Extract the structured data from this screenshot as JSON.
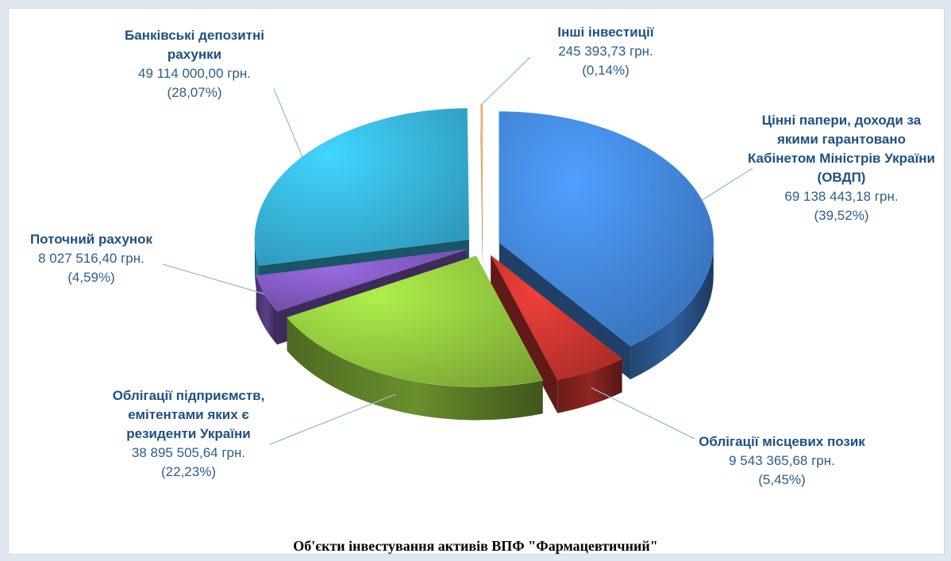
{
  "chart_data": {
    "type": "pie",
    "title": "Об'єкти інвестування активів ВПФ \"Фармацевтичний\"",
    "slices": [
      {
        "label": "Цінні папери, доходи за якими гарантовано Кабінетом Міністрів України (ОВДП)",
        "value_text": "69 138 443,18 грн.",
        "percent_text": "(39,52%)",
        "value": 69138443.18,
        "percent": 39.52,
        "color": "#3f7fd0"
      },
      {
        "label": "Облігації місцевих позик",
        "value_text": "9 543 365,68 грн.",
        "percent_text": "(5,45%)",
        "value": 9543365.68,
        "percent": 5.45,
        "color": "#c0332e"
      },
      {
        "label": "Облігації підприємств, емітентами яких є резиденти України",
        "value_text": "38 895 505,64 грн.",
        "percent_text": "(22,23%)",
        "value": 38895505.64,
        "percent": 22.23,
        "color": "#8cbf3c"
      },
      {
        "label": "Поточний рахунок",
        "value_text": "8 027 516,40 грн.",
        "percent_text": "(4,59%)",
        "value": 8027516.4,
        "percent": 4.59,
        "color": "#7a55b5"
      },
      {
        "label": "Банківські депозитні рахунки",
        "value_text": "49 114 000,00 грн.",
        "percent_text": "(28,07%)",
        "value": 49114000.0,
        "percent": 28.07,
        "color": "#35aad0"
      },
      {
        "label": "Інші інвестиції",
        "value_text": "245 393,73 грн.",
        "percent_text": "(0,14%)",
        "value": 245393.73,
        "percent": 0.14,
        "color": "#f0a060"
      }
    ]
  }
}
